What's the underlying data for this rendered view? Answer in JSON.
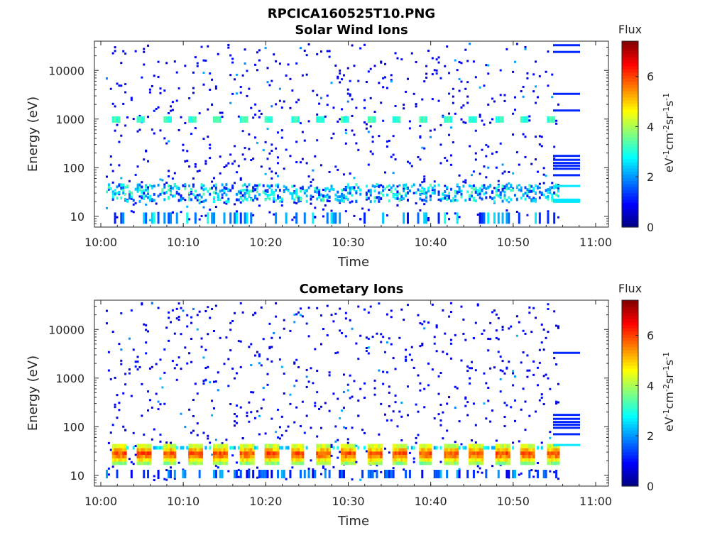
{
  "page": {
    "title": "RPCICA160525T10.PNG"
  },
  "colorbar": {
    "title": "Flux",
    "label_html": "eV<tspan baseline-shift='super' font-size='11'>-1</tspan>cm<tspan baseline-shift='super' font-size='11'>-2</tspan>sr<tspan baseline-shift='super' font-size='11'>-1</tspan>s<tspan baseline-shift='super' font-size='11'>-1</tspan>",
    "label_text": "eV-1cm-2sr-1s-1",
    "range": [
      0,
      7.4
    ],
    "ticks": [
      "0",
      "2",
      "4",
      "6"
    ],
    "colormap": "jet"
  },
  "chart_data": [
    {
      "type": "heatmap",
      "title": "Solar Wind Ions",
      "xlabel": "Time",
      "ylabel": "Energy (eV)",
      "xlim": [
        "10:00",
        "11:00"
      ],
      "xticks": [
        "10:00",
        "10:10",
        "10:20",
        "10:30",
        "10:40",
        "10:50",
        "11:00"
      ],
      "ylim": [
        6,
        40000
      ],
      "yscale": "log",
      "yticks": [
        "10",
        "100",
        "1000",
        "10000"
      ],
      "data_time_range": [
        "10:00",
        "10:55"
      ],
      "features": {
        "periodic_band_1000eV": {
          "energy_ev": 950,
          "flux": 3.5,
          "period_min": 3.1
        },
        "low_energy_band": {
          "energy_range_ev": [
            20,
            45
          ],
          "flux_range": [
            1,
            3.5
          ]
        },
        "sparse_background": {
          "flux": 0.8
        }
      },
      "legend_lines_energy_ev": [
        33000,
        24000,
        3300,
        1500,
        175,
        145,
        125,
        110,
        95,
        70,
        42,
        22
      ]
    },
    {
      "type": "heatmap",
      "title": "Cometary Ions",
      "xlabel": "Time",
      "ylabel": "Energy (eV)",
      "xlim": [
        "10:00",
        "11:00"
      ],
      "xticks": [
        "10:00",
        "10:10",
        "10:20",
        "10:30",
        "10:40",
        "10:50",
        "11:00"
      ],
      "ylim": [
        6,
        40000
      ],
      "yscale": "log",
      "yticks": [
        "10",
        "100",
        "1000",
        "10000"
      ],
      "data_time_range": [
        "10:00",
        "10:55"
      ],
      "features": {
        "periodic_blocks": {
          "energy_range_ev": [
            18,
            40
          ],
          "peak_flux": 6.5,
          "period_min": 3.1
        },
        "sparse_background": {
          "flux": 0.8
        }
      },
      "legend_lines_energy_ev": [
        3300,
        175,
        145,
        125,
        110,
        95,
        70,
        42
      ]
    }
  ]
}
